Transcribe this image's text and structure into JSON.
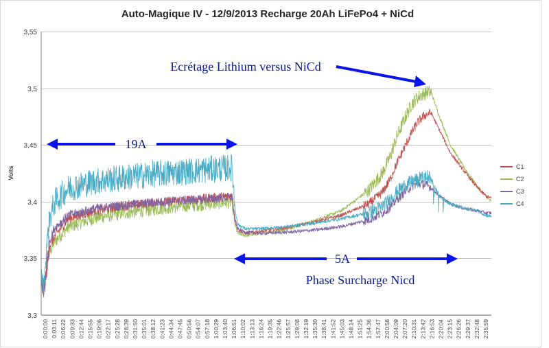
{
  "chart_data": {
    "type": "line",
    "title": "Auto-Magique IV - 12/9/2013 Recharge 20Ah LiFePo4 + NiCd",
    "xlabel": "",
    "ylabel": "Volts",
    "ylim": [
      3.3,
      3.55
    ],
    "yticks": [
      "3,3",
      "3,35",
      "3,4",
      "3,45",
      "3,5",
      "3,55"
    ],
    "ytick_values": [
      3.3,
      3.35,
      3.4,
      3.45,
      3.5,
      3.55
    ],
    "xlim_minutes": [
      0,
      165
    ],
    "xtick_labels": [
      "0:00:00",
      "0:03:11",
      "0:06:22",
      "0:09:33",
      "0:12:44",
      "0:15:55",
      "0:19:06",
      "0:22:17",
      "0:25:28",
      "0:28:39",
      "0:31:50",
      "0:35:01",
      "0:38:12",
      "0:41:23",
      "0:44:34",
      "0:47:45",
      "0:50:56",
      "0:54:07",
      "0:57:18",
      "1:00:29",
      "1:03:40",
      "1:06:51",
      "1:10:02",
      "1:13:13",
      "1:16:24",
      "1:19:35",
      "1:22:46",
      "1:25:57",
      "1:29:08",
      "1:32:19",
      "1:35:30",
      "1:38:41",
      "1:41:52",
      "1:45:03",
      "1:48:14",
      "1:51:25",
      "1:54:36",
      "1:57:47",
      "2:00:58",
      "2:04:09",
      "2:07:20",
      "2:10:31",
      "2:13:42",
      "2:16:53",
      "2:20:04",
      "2:23:15",
      "2:26:26",
      "2:29:37",
      "2:32:48",
      "2:35:59"
    ],
    "series": [
      {
        "name": "C1",
        "color": "#c0504d",
        "x": [
          0,
          1,
          2,
          3,
          5,
          10,
          20,
          30,
          40,
          50,
          60,
          70,
          71,
          72,
          75,
          80,
          90,
          100,
          110,
          120,
          125,
          128,
          130,
          133,
          136,
          138,
          140,
          142,
          143,
          146,
          150,
          155,
          160,
          163,
          165
        ],
        "y": [
          3.33,
          3.32,
          3.34,
          3.36,
          3.37,
          3.385,
          3.392,
          3.396,
          3.399,
          3.401,
          3.403,
          3.405,
          3.385,
          3.375,
          3.372,
          3.374,
          3.377,
          3.382,
          3.388,
          3.398,
          3.408,
          3.42,
          3.432,
          3.447,
          3.462,
          3.47,
          3.475,
          3.478,
          3.478,
          3.463,
          3.443,
          3.427,
          3.412,
          3.405,
          3.403
        ]
      },
      {
        "name": "C2",
        "color": "#9bbb59",
        "x": [
          0,
          1,
          2,
          3,
          5,
          10,
          20,
          30,
          40,
          50,
          60,
          70,
          71,
          72,
          75,
          80,
          90,
          100,
          110,
          120,
          125,
          128,
          130,
          133,
          136,
          138,
          140,
          142,
          143,
          146,
          150,
          155,
          160,
          163,
          165
        ],
        "y": [
          3.33,
          3.32,
          3.34,
          3.355,
          3.365,
          3.378,
          3.386,
          3.39,
          3.393,
          3.396,
          3.398,
          3.4,
          3.38,
          3.372,
          3.37,
          3.372,
          3.376,
          3.383,
          3.392,
          3.41,
          3.425,
          3.44,
          3.455,
          3.472,
          3.487,
          3.492,
          3.495,
          3.497,
          3.496,
          3.475,
          3.45,
          3.43,
          3.413,
          3.405,
          3.4
        ]
      },
      {
        "name": "C3",
        "color": "#8064a2",
        "x": [
          0,
          1,
          2,
          3,
          5,
          10,
          20,
          30,
          40,
          50,
          60,
          70,
          71,
          72,
          75,
          80,
          90,
          100,
          110,
          120,
          125,
          128,
          130,
          133,
          136,
          138,
          140,
          142,
          143,
          146,
          150,
          155,
          160,
          163,
          165
        ],
        "y": [
          3.33,
          3.32,
          3.345,
          3.365,
          3.377,
          3.388,
          3.394,
          3.397,
          3.399,
          3.401,
          3.402,
          3.404,
          3.385,
          3.376,
          3.373,
          3.372,
          3.373,
          3.375,
          3.378,
          3.384,
          3.39,
          3.395,
          3.401,
          3.408,
          3.414,
          3.416,
          3.415,
          3.414,
          3.412,
          3.405,
          3.398,
          3.394,
          3.392,
          3.39,
          3.39
        ]
      },
      {
        "name": "C4",
        "color": "#4bacc6",
        "x": [
          0,
          1,
          2,
          3,
          5,
          10,
          20,
          30,
          40,
          50,
          60,
          70,
          71,
          72,
          75,
          80,
          90,
          100,
          110,
          120,
          125,
          128,
          130,
          133,
          136,
          138,
          140,
          142,
          143,
          146,
          150,
          155,
          160,
          163,
          165
        ],
        "y": [
          3.335,
          3.325,
          3.36,
          3.385,
          3.4,
          3.412,
          3.418,
          3.421,
          3.424,
          3.426,
          3.428,
          3.43,
          3.395,
          3.38,
          3.376,
          3.376,
          3.378,
          3.381,
          3.385,
          3.39,
          3.396,
          3.402,
          3.408,
          3.414,
          3.418,
          3.42,
          3.421,
          3.422,
          3.42,
          3.405,
          3.398,
          3.394,
          3.392,
          3.388,
          3.387
        ]
      }
    ],
    "annotations": [
      {
        "text": "Ecrétage Lithium versus NiCd"
      },
      {
        "text": "19A"
      },
      {
        "text": "5A"
      },
      {
        "text": "Phase Surcharge Nicd"
      }
    ],
    "legend": "right",
    "grid": true
  }
}
